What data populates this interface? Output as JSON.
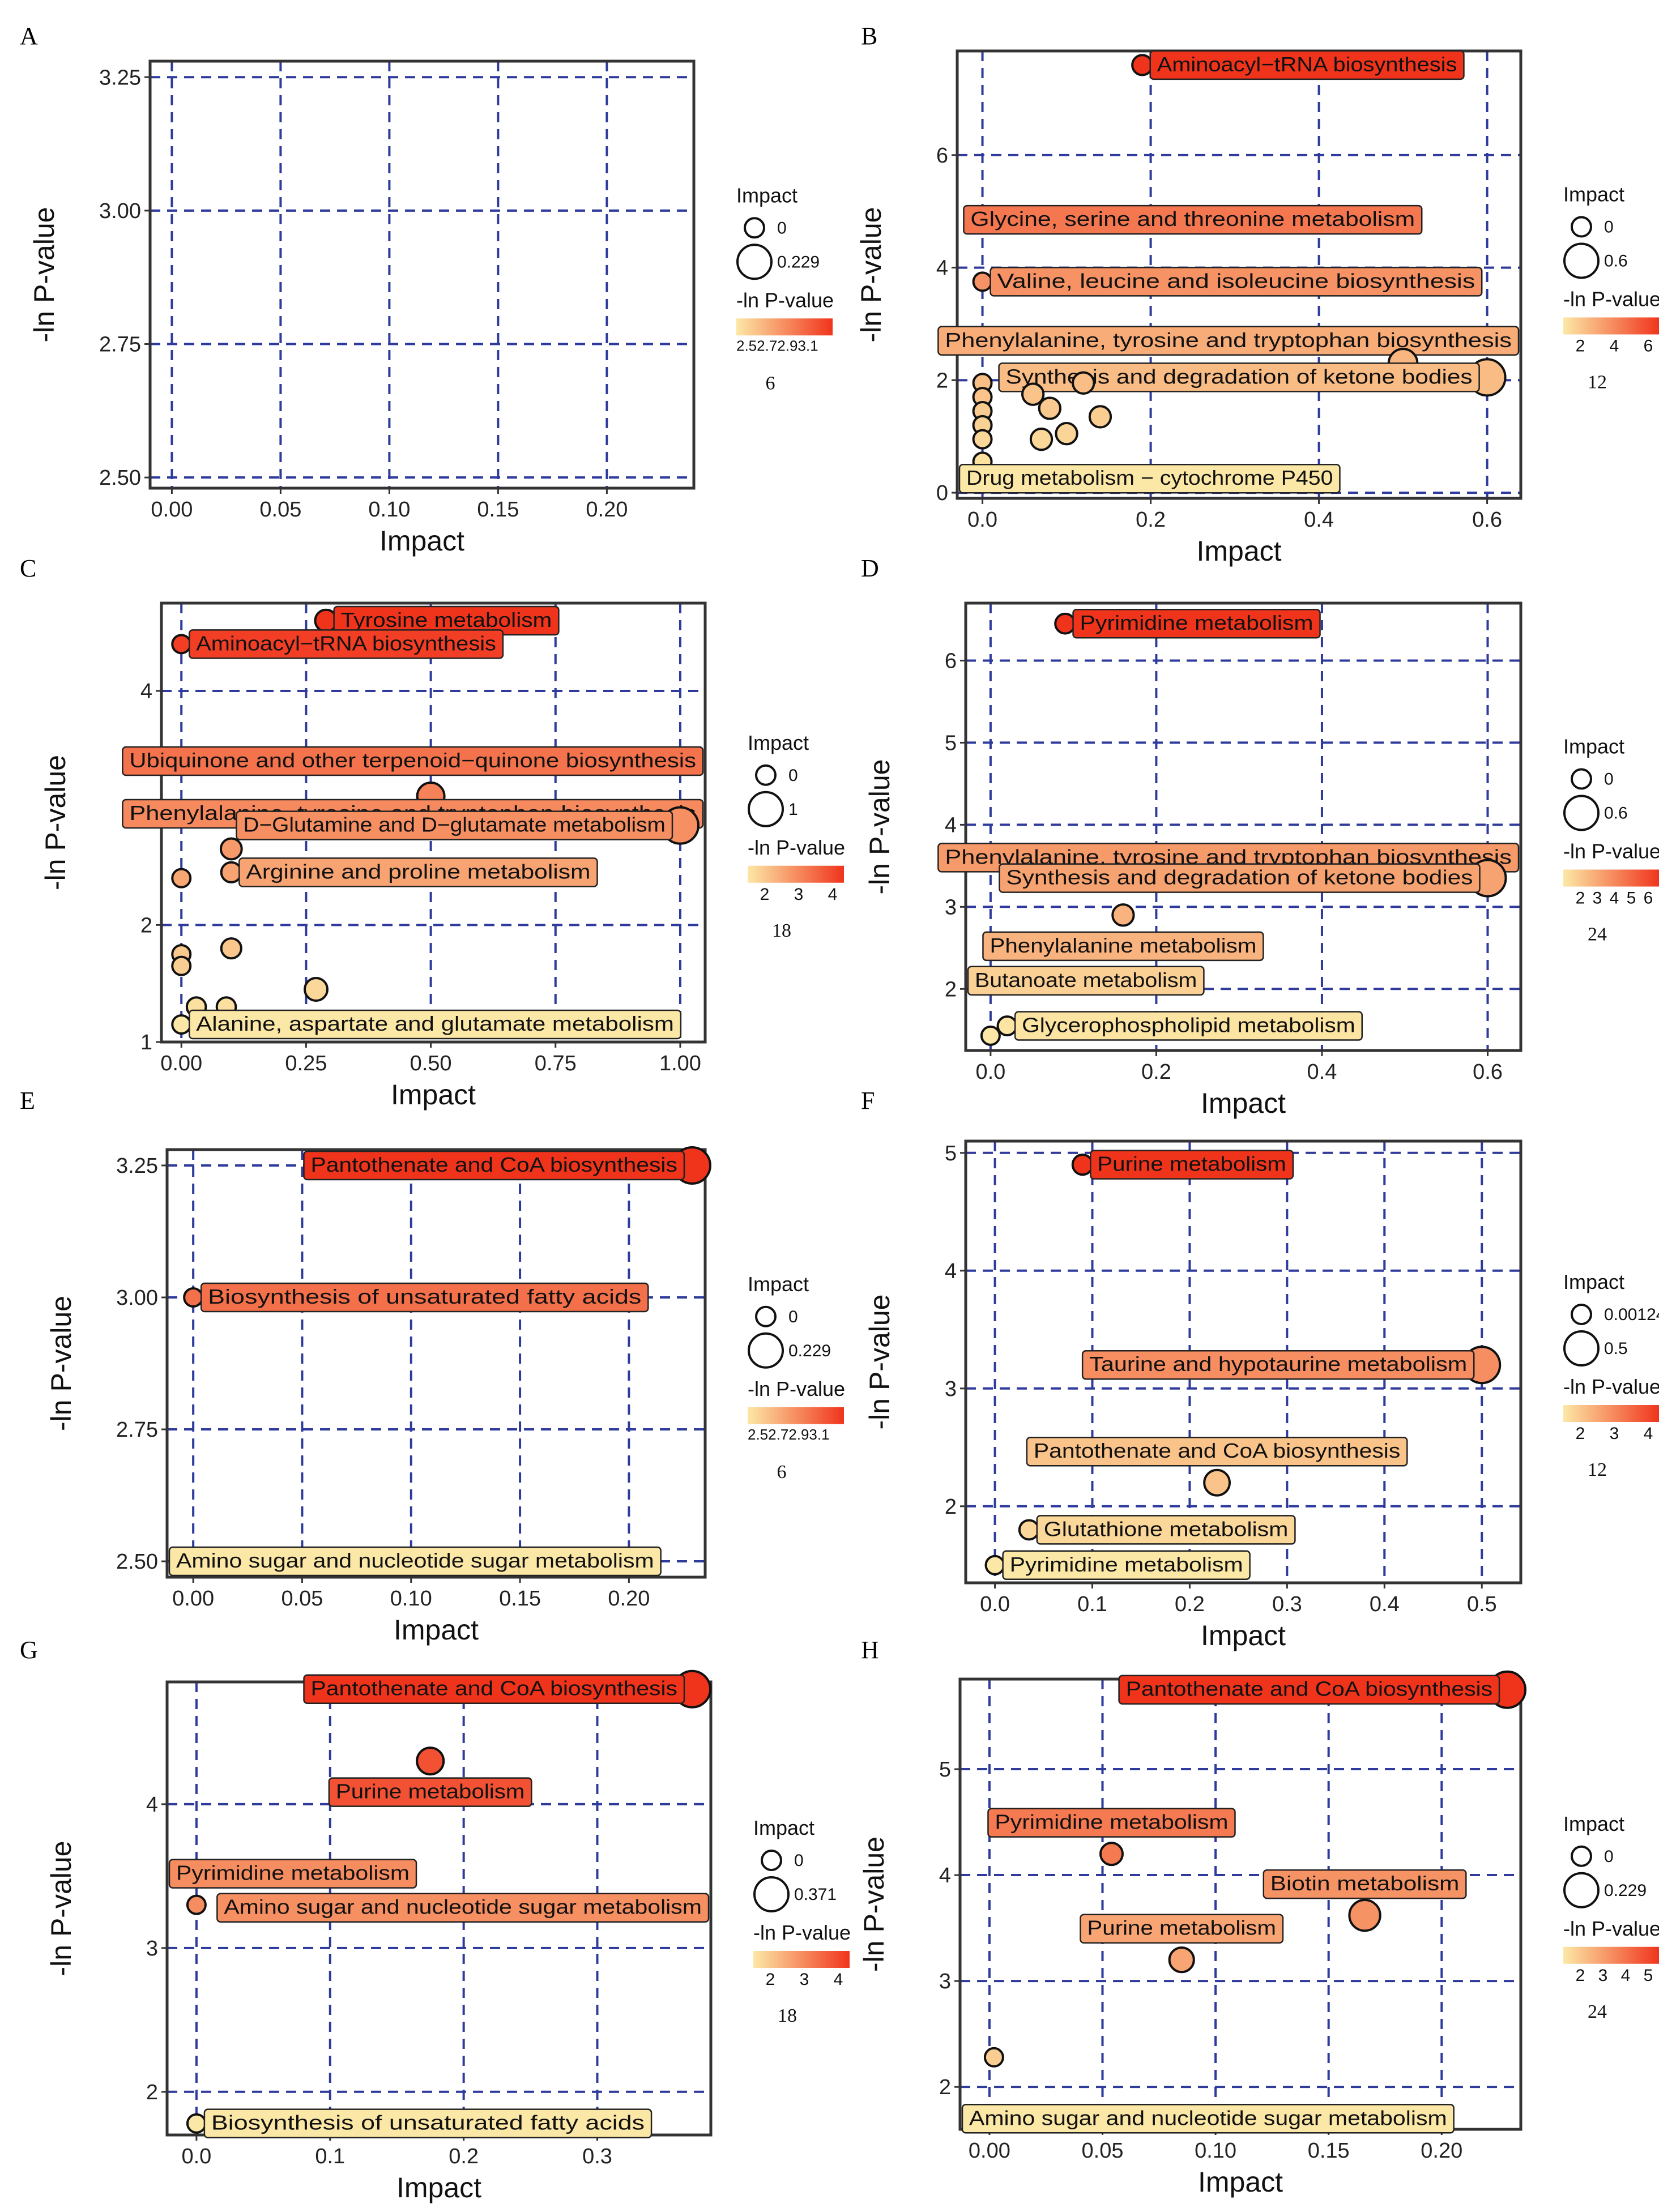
{
  "figure": {
    "axis_labels": {
      "x": "Impact",
      "y": "-ln P-value"
    },
    "legend_titles": {
      "size": "Impact",
      "color": "-ln P-value"
    },
    "colors": {
      "low": "#fce8a6",
      "high": "#f0341c",
      "grid": "#2e3a9c",
      "frame": "#333333",
      "outline": "#111111"
    }
  },
  "chart_data": [
    {
      "id": "A",
      "panel_label": "A",
      "type": "scatter",
      "title": "",
      "xlabel": "Impact",
      "ylabel": "-ln P-value",
      "xlim": [
        -0.01,
        0.24
      ],
      "ylim": [
        2.48,
        3.28
      ],
      "xticks": [
        0,
        0.05,
        0.1,
        0.15,
        0.2
      ],
      "xtick_labels": [
        "0.00",
        "0.05",
        "0.10",
        "0.15",
        "0.20"
      ],
      "yticks": [
        2.5,
        2.75,
        3.0,
        3.25
      ],
      "ytick_labels": [
        "2.50",
        "2.75",
        "3.00",
        "3.25"
      ],
      "grid": true,
      "size_legend": [
        "0",
        "0.229"
      ],
      "color_legend_ticks": [
        "2.52.72.93.1"
      ],
      "legend_number": "6",
      "points": []
    },
    {
      "id": "B",
      "panel_label": "B",
      "type": "scatter",
      "title": "",
      "xlabel": "Impact",
      "ylabel": "-ln P-value",
      "xlim": [
        -0.03,
        0.64
      ],
      "ylim": [
        -0.1,
        7.85
      ],
      "xticks": [
        0,
        0.2,
        0.4,
        0.6
      ],
      "xtick_labels": [
        "0.0",
        "0.2",
        "0.4",
        "0.6"
      ],
      "yticks": [
        0,
        2,
        4,
        6
      ],
      "ytick_labels": [
        "0",
        "2",
        "4",
        "6"
      ],
      "grid": true,
      "size_legend": [
        "0",
        "0.6"
      ],
      "color_legend_ticks": [
        "2",
        "4",
        "6"
      ],
      "legend_number": "12",
      "points": [
        {
          "x": 0.19,
          "y": 7.6,
          "s": 0.06,
          "c": 7.6,
          "label": "Aminoacyl−tRNA biosynthesis",
          "label_anchor": "right"
        },
        {
          "x": 0.25,
          "y": 4.85,
          "s": 0.28,
          "c": 4.85,
          "label": "Glycine, serine and threonine metabolism",
          "label_anchor": "center"
        },
        {
          "x": 0.0,
          "y": 3.75,
          "s": 0.0,
          "c": 3.75,
          "label": "Valine, leucine and isoleucine biosynthesis",
          "label_anchor": "right"
        },
        {
          "x": 0.15,
          "y": 2.7,
          "s": 0.1,
          "c": 2.7,
          "label": "Phenylalanine, tyrosine and tryptophan biosynthesis",
          "label_anchor": "center"
        },
        {
          "x": 0.5,
          "y": 2.3,
          "s": 0.35,
          "c": 2.3
        },
        {
          "x": 0.6,
          "y": 2.05,
          "s": 0.6,
          "c": 2.05,
          "label": "Synthesis and degradation of ketone bodies",
          "label_anchor": "left"
        },
        {
          "x": 0.0,
          "y": 1.95,
          "s": 0.0,
          "c": 1.95
        },
        {
          "x": 0.0,
          "y": 1.7,
          "s": 0.0,
          "c": 1.7
        },
        {
          "x": 0.0,
          "y": 1.45,
          "s": 0.0,
          "c": 1.45
        },
        {
          "x": 0.0,
          "y": 1.2,
          "s": 0.0,
          "c": 1.2
        },
        {
          "x": 0.0,
          "y": 0.95,
          "s": 0.0,
          "c": 0.95
        },
        {
          "x": 0.0,
          "y": 0.55,
          "s": 0.0,
          "c": 0.55
        },
        {
          "x": 0.06,
          "y": 1.75,
          "s": 0.1,
          "c": 1.75
        },
        {
          "x": 0.08,
          "y": 1.5,
          "s": 0.1,
          "c": 1.5
        },
        {
          "x": 0.12,
          "y": 1.95,
          "s": 0.1,
          "c": 1.95
        },
        {
          "x": 0.14,
          "y": 1.35,
          "s": 0.1,
          "c": 1.35
        },
        {
          "x": 0.1,
          "y": 1.05,
          "s": 0.1,
          "c": 1.05
        },
        {
          "x": 0.07,
          "y": 0.95,
          "s": 0.1,
          "c": 0.95
        },
        {
          "x": 0.18,
          "y": 0.25,
          "s": 0.1,
          "c": 0.25,
          "label": "Drug metabolism − cytochrome P450",
          "label_anchor": "center"
        }
      ]
    },
    {
      "id": "C",
      "panel_label": "C",
      "type": "scatter",
      "title": "",
      "xlabel": "Impact",
      "ylabel": "-ln P-value",
      "xlim": [
        -0.04,
        1.05
      ],
      "ylim": [
        1.0,
        4.75
      ],
      "xticks": [
        0,
        0.25,
        0.5,
        0.75,
        1.0
      ],
      "xtick_labels": [
        "0.00",
        "0.25",
        "0.50",
        "0.75",
        "1.00"
      ],
      "yticks": [
        1,
        2,
        3,
        4
      ],
      "ytick_labels": [
        "1",
        "2",
        "3",
        "4"
      ],
      "grid": true,
      "size_legend": [
        "0",
        "1"
      ],
      "color_legend_ticks": [
        "2",
        "3",
        "4"
      ],
      "legend_number": "18",
      "points": [
        {
          "x": 0.29,
          "y": 4.6,
          "s": 0.2,
          "c": 4.6,
          "label": "Tyrosine metabolism",
          "label_anchor": "right"
        },
        {
          "x": 0.0,
          "y": 4.4,
          "s": 0.0,
          "c": 4.4,
          "label": "Aminoacyl−tRNA biosynthesis",
          "label_anchor": "right"
        },
        {
          "x": 0.0,
          "y": 3.4,
          "s": 0.0,
          "c": 3.4,
          "label": "Ubiquinone and other terpenoid−quinone biosynthesis",
          "label_anchor": "right"
        },
        {
          "x": 0.5,
          "y": 3.1,
          "s": 0.5,
          "c": 3.1
        },
        {
          "x": 0.05,
          "y": 2.95,
          "s": 0.05,
          "c": 2.95,
          "label": "Phenylalanine, tyrosine and tryptophan biosynthesis",
          "label_anchor": "center"
        },
        {
          "x": 1.0,
          "y": 2.85,
          "s": 1.0,
          "c": 2.85,
          "label": "D−Glutamine and D−glutamate metabolism",
          "label_anchor": "left"
        },
        {
          "x": 0.1,
          "y": 2.65,
          "s": 0.15,
          "c": 2.65
        },
        {
          "x": 0.1,
          "y": 2.45,
          "s": 0.1,
          "c": 2.45,
          "label": "Arginine and proline metabolism",
          "label_anchor": "right"
        },
        {
          "x": 0.0,
          "y": 2.4,
          "s": 0.0,
          "c": 2.4
        },
        {
          "x": 0.0,
          "y": 1.75,
          "s": 0.0,
          "c": 1.75
        },
        {
          "x": 0.0,
          "y": 1.65,
          "s": 0.0,
          "c": 1.65
        },
        {
          "x": 0.1,
          "y": 1.8,
          "s": 0.1,
          "c": 1.8
        },
        {
          "x": 0.27,
          "y": 1.45,
          "s": 0.25,
          "c": 1.45
        },
        {
          "x": 0.03,
          "y": 1.3,
          "s": 0.05,
          "c": 1.3
        },
        {
          "x": 0.09,
          "y": 1.3,
          "s": 0.05,
          "c": 1.3
        },
        {
          "x": 0.0,
          "y": 1.15,
          "s": 0.0,
          "c": 1.15,
          "label": "Alanine, aspartate and glutamate metabolism",
          "label_anchor": "right"
        }
      ]
    },
    {
      "id": "D",
      "panel_label": "D",
      "type": "scatter",
      "title": "",
      "xlabel": "Impact",
      "ylabel": "-ln P-value",
      "xlim": [
        -0.03,
        0.64
      ],
      "ylim": [
        1.25,
        6.7
      ],
      "xticks": [
        0,
        0.2,
        0.4,
        0.6
      ],
      "xtick_labels": [
        "0.0",
        "0.2",
        "0.4",
        "0.6"
      ],
      "yticks": [
        2,
        3,
        4,
        5,
        6
      ],
      "ytick_labels": [
        "2",
        "3",
        "4",
        "5",
        "6"
      ],
      "grid": true,
      "size_legend": [
        "0",
        "0.6"
      ],
      "color_legend_ticks": [
        "2",
        "3",
        "4",
        "5",
        "6"
      ],
      "legend_number": "24",
      "points": [
        {
          "x": 0.09,
          "y": 6.45,
          "s": 0.05,
          "c": 6.45,
          "label": "Pyrimidine metabolism",
          "label_anchor": "right"
        },
        {
          "x": 0.0,
          "y": 3.6,
          "s": 0.0,
          "c": 3.6,
          "label": "Phenylalanine, tyrosine and tryptophan biosynthesis",
          "label_anchor": "right"
        },
        {
          "x": 0.6,
          "y": 3.35,
          "s": 0.6,
          "c": 3.35,
          "label": "Synthesis and degradation of ketone bodies",
          "label_anchor": "left"
        },
        {
          "x": 0.16,
          "y": 2.9,
          "s": 0.1,
          "c": 2.9,
          "label": "Phenylalanine metabolism",
          "label_anchor": "below"
        },
        {
          "x": 0.0,
          "y": 2.15,
          "s": 0.0,
          "c": 2.15
        },
        {
          "x": 0.1,
          "y": 2.1,
          "s": 0.1,
          "c": 2.1,
          "label": "Butanoate metabolism",
          "label_anchor": "center"
        },
        {
          "x": 0.02,
          "y": 1.55,
          "s": 0.02,
          "c": 1.55,
          "label": "Glycerophospholipid metabolism",
          "label_anchor": "right"
        },
        {
          "x": 0.0,
          "y": 1.43,
          "s": 0.0,
          "c": 1.43
        }
      ]
    },
    {
      "id": "E",
      "panel_label": "E",
      "type": "scatter",
      "title": "",
      "xlabel": "Impact",
      "ylabel": "-ln P-value",
      "xlim": [
        -0.012,
        0.235
      ],
      "ylim": [
        2.47,
        3.28
      ],
      "xticks": [
        0,
        0.05,
        0.1,
        0.15,
        0.2
      ],
      "xtick_labels": [
        "0.00",
        "0.05",
        "0.10",
        "0.15",
        "0.20"
      ],
      "yticks": [
        2.5,
        2.75,
        3.0,
        3.25
      ],
      "ytick_labels": [
        "2.50",
        "2.75",
        "3.00",
        "3.25"
      ],
      "grid": true,
      "size_legend": [
        "0",
        "0.229"
      ],
      "color_legend_ticks": [
        "2.52.72.93.1"
      ],
      "legend_number": "6",
      "points": [
        {
          "x": 0.229,
          "y": 3.25,
          "s": 0.229,
          "c": 3.25,
          "label": "Pantothenate and CoA biosynthesis",
          "label_anchor": "left"
        },
        {
          "x": 0.0,
          "y": 3.0,
          "s": 0.0,
          "c": 3.0,
          "label": "Biosynthesis of unsaturated fatty acids",
          "label_anchor": "right"
        },
        {
          "x": 0.039,
          "y": 2.5,
          "s": 0.04,
          "c": 2.5,
          "label": "Amino sugar and nucleotide sugar metabolism",
          "label_anchor": "center"
        }
      ]
    },
    {
      "id": "F",
      "panel_label": "F",
      "type": "scatter",
      "title": "",
      "xlabel": "Impact",
      "ylabel": "-ln P-value",
      "xlim": [
        -0.03,
        0.54
      ],
      "ylim": [
        1.35,
        5.1
      ],
      "xticks": [
        0,
        0.1,
        0.2,
        0.3,
        0.4,
        0.5
      ],
      "xtick_labels": [
        "0.0",
        "0.1",
        "0.2",
        "0.3",
        "0.4",
        "0.5"
      ],
      "yticks": [
        2,
        3,
        4,
        5
      ],
      "ytick_labels": [
        "2",
        "3",
        "4",
        "5"
      ],
      "grid": true,
      "size_legend": [
        "0.00124",
        "0.5"
      ],
      "color_legend_ticks": [
        "2",
        "3",
        "4"
      ],
      "legend_number": "12",
      "points": [
        {
          "x": 0.09,
          "y": 4.9,
          "s": 0.05,
          "c": 4.9,
          "label": "Purine metabolism",
          "label_anchor": "right"
        },
        {
          "x": 0.5,
          "y": 3.2,
          "s": 0.5,
          "c": 3.2,
          "label": "Taurine and hypotaurine metabolism",
          "label_anchor": "left"
        },
        {
          "x": 0.228,
          "y": 2.2,
          "s": 0.2,
          "c": 2.2,
          "label": "Pantothenate and CoA biosynthesis",
          "label_anchor": "above"
        },
        {
          "x": 0.035,
          "y": 1.8,
          "s": 0.03,
          "c": 1.8,
          "label": "Glutathione metabolism",
          "label_anchor": "right"
        },
        {
          "x": 0.0,
          "y": 1.5,
          "s": 0.00124,
          "c": 1.5,
          "label": "Pyrimidine metabolism",
          "label_anchor": "right"
        }
      ]
    },
    {
      "id": "G",
      "panel_label": "G",
      "type": "scatter",
      "title": "",
      "xlabel": "Impact",
      "ylabel": "-ln P-value",
      "xlim": [
        -0.022,
        0.385
      ],
      "ylim": [
        1.7,
        4.85
      ],
      "xticks": [
        0,
        0.1,
        0.2,
        0.3
      ],
      "xtick_labels": [
        "0.0",
        "0.1",
        "0.2",
        "0.3"
      ],
      "yticks": [
        2,
        3,
        4
      ],
      "ytick_labels": [
        "2",
        "3",
        "4"
      ],
      "grid": true,
      "size_legend": [
        "0",
        "0.371"
      ],
      "color_legend_ticks": [
        "2",
        "3",
        "4"
      ],
      "legend_number": "18",
      "points": [
        {
          "x": 0.371,
          "y": 4.8,
          "s": 0.371,
          "c": 4.8,
          "label": "Pantothenate and CoA biosynthesis",
          "label_anchor": "left"
        },
        {
          "x": 0.175,
          "y": 4.3,
          "s": 0.175,
          "c": 4.3,
          "label": "Purine metabolism",
          "label_anchor": "below"
        },
        {
          "x": 0.0,
          "y": 3.3,
          "s": 0.0,
          "c": 3.3,
          "label": "Pyrimidine metabolism",
          "label_anchor": "above"
        },
        {
          "x": 0.04,
          "y": 3.28,
          "s": 0.04,
          "c": 3.28,
          "label": "Amino sugar and nucleotide sugar metabolism",
          "label_anchor": "right"
        },
        {
          "x": 0.0,
          "y": 1.78,
          "s": 0.0,
          "c": 1.78,
          "label": "Biosynthesis of unsaturated fatty acids",
          "label_anchor": "right"
        }
      ]
    },
    {
      "id": "H",
      "panel_label": "H",
      "type": "scatter",
      "title": "",
      "xlabel": "Impact",
      "ylabel": "-ln P-value",
      "xlim": [
        -0.013,
        0.235
      ],
      "ylim": [
        1.6,
        5.85
      ],
      "xticks": [
        0,
        0.05,
        0.1,
        0.15,
        0.2
      ],
      "xtick_labels": [
        "0.00",
        "0.05",
        "0.10",
        "0.15",
        "0.20"
      ],
      "yticks": [
        2,
        3,
        4,
        5
      ],
      "ytick_labels": [
        "2",
        "3",
        "4",
        "5"
      ],
      "grid": true,
      "size_legend": [
        "0",
        "0.229"
      ],
      "color_legend_ticks": [
        "2",
        "3",
        "4",
        "5"
      ],
      "legend_number": "24",
      "points": [
        {
          "x": 0.229,
          "y": 5.75,
          "s": 0.229,
          "c": 5.75,
          "label": "Pantothenate and CoA biosynthesis",
          "label_anchor": "left"
        },
        {
          "x": 0.054,
          "y": 4.2,
          "s": 0.05,
          "c": 4.2,
          "label": "Pyrimidine metabolism",
          "label_anchor": "above"
        },
        {
          "x": 0.166,
          "y": 3.62,
          "s": 0.16,
          "c": 3.62,
          "label": "Biotin metabolism",
          "label_anchor": "above"
        },
        {
          "x": 0.085,
          "y": 3.2,
          "s": 0.08,
          "c": 3.2,
          "label": "Purine metabolism",
          "label_anchor": "above"
        },
        {
          "x": 0.002,
          "y": 2.28,
          "s": 0.0,
          "c": 2.28
        },
        {
          "x": 0.04,
          "y": 1.7,
          "s": 0.04,
          "c": 1.7,
          "label": "Amino sugar and nucleotide sugar metabolism",
          "label_anchor": "center"
        }
      ]
    }
  ]
}
